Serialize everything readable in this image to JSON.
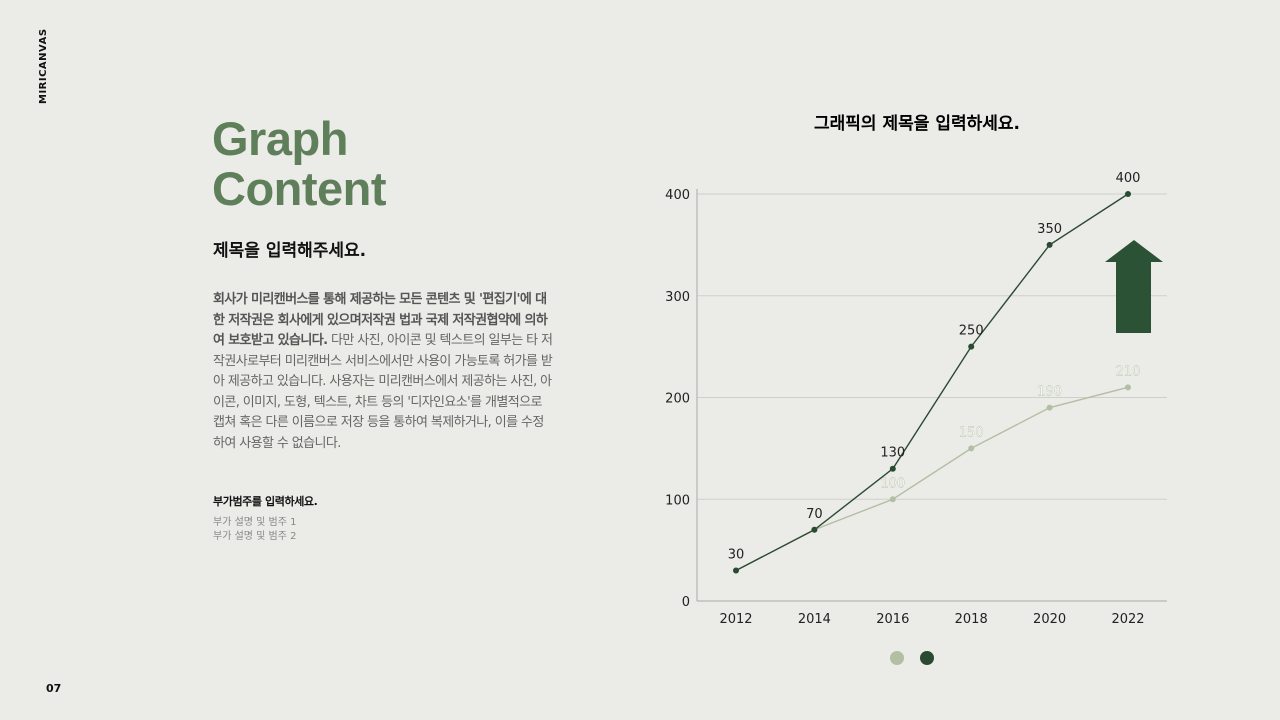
{
  "brand": "MIRICANVAS",
  "page_number": "07",
  "heading": [
    "Graph",
    "Content"
  ],
  "subtitle": "제목을 입력해주세요.",
  "paragraph_bold": "회사가 미리캔버스를 통해 제공하는 모든 콘텐츠 및 '편집기'에 대한 저작권은 회사에게 있으며저작권 법과 국제 저작권협약에 의하여 보호받고 있습니다.",
  "paragraph_rest": " 다만 사진, 아이콘 및 텍스트의 일부는 타 저작권사로부터 미리캔버스 서비스에서만 사용이 가능토록 허가를 받아 제공하고 있습니다. 사용자는 미리캔버스에서 제공하는 사진, 아이콘, 이미지, 도형, 텍스트, 차트 등의 '디자인요소'를 개별적으로 캡쳐 혹은 다른 이름으로 저장 등을 통하여 복제하거나, 이를 수정하여 사용할 수 없습니다.",
  "category": {
    "title": "부가범주를 입력하세요.",
    "items": [
      "부가 설명 및 범주 1",
      "부가 설명 및 범주 2"
    ]
  },
  "chart_data": {
    "type": "line",
    "title": "그래픽의 제목을 입력하세요.",
    "categories": [
      "2012",
      "2014",
      "2016",
      "2018",
      "2020",
      "2022"
    ],
    "ylim": [
      0,
      400
    ],
    "yticks": [
      "0",
      "100",
      "200",
      "300",
      "400"
    ],
    "grid": true,
    "legend": "bottom",
    "series": [
      {
        "color": "#b3bfa3",
        "values": [
          30,
          70,
          100,
          150,
          190,
          210
        ]
      },
      {
        "color": "#2b4a32",
        "values": [
          30,
          70,
          130,
          250,
          350,
          400
        ]
      }
    ],
    "annotation": "up-arrow-icon",
    "arrow_color": "#2b5234"
  }
}
